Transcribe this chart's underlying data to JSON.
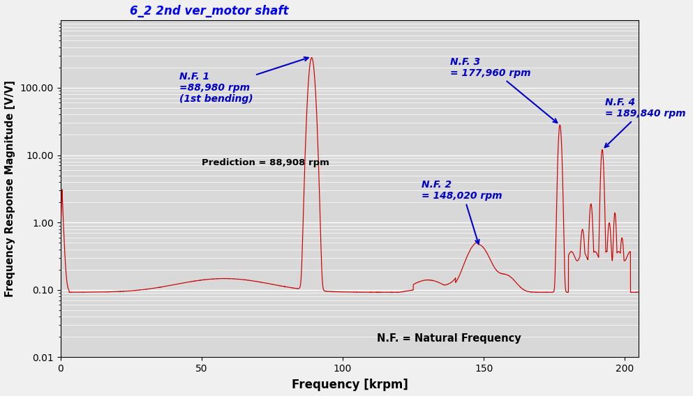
{
  "title": "6_2 2nd ver_motor shaft",
  "title_color": "#0000FF",
  "xlabel": "Frequency [krpm]",
  "ylabel": "Frequency Response Magnitude [V/V]",
  "xlim": [
    0,
    205
  ],
  "ylim_log": [
    0.01,
    1000
  ],
  "xticks": [
    0,
    50,
    100,
    150,
    200
  ],
  "yticks": [
    0.01,
    0.1,
    1.0,
    10.0,
    100.0
  ],
  "ytick_labels": [
    "0.01",
    "0.10",
    "1.00",
    "10.00",
    "100.00"
  ],
  "plot_bg_color": "#D8D8D8",
  "fig_bg_color": "#F0F0F0",
  "line_color": "#CC0000",
  "annotation_color": "#0000CC",
  "prediction_text": "Prediction = 88,908 rpm",
  "nf_text": "N.F. = Natural Frequency"
}
